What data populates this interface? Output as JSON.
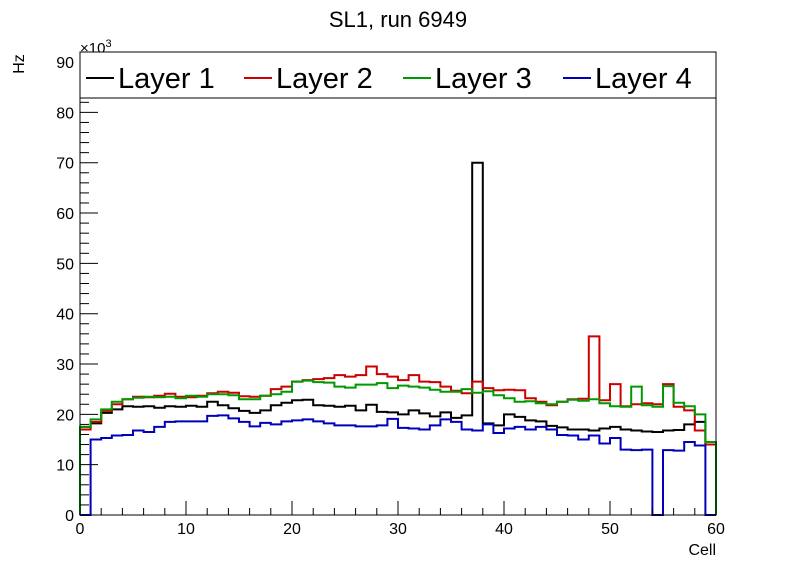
{
  "chart_data": {
    "type": "histogram-step",
    "title": "SL1, run 6949",
    "xlabel": "Cell",
    "ylabel": "Hz",
    "y_exponent_label": "×10",
    "y_exponent_power": "3",
    "xlim": [
      0,
      60
    ],
    "ylim": [
      0,
      92
    ],
    "x_ticks": [
      0,
      10,
      20,
      30,
      40,
      50,
      60
    ],
    "y_ticks": [
      0,
      10,
      20,
      30,
      40,
      50,
      60,
      70,
      80,
      90
    ],
    "legend_position": "top",
    "series": [
      {
        "name": "Layer 1",
        "color": "#000000",
        "values": [
          17.5,
          18.2,
          20.3,
          21.0,
          21.6,
          21.5,
          21.6,
          21.3,
          21.6,
          21.5,
          21.7,
          21.5,
          22.5,
          21.8,
          21.2,
          20.7,
          20.3,
          20.8,
          21.8,
          22.3,
          22.8,
          22.9,
          21.8,
          21.7,
          21.5,
          21.7,
          20.8,
          21.9,
          20.5,
          20.4,
          20.0,
          20.8,
          20.2,
          19.6,
          20.4,
          19.3,
          19.8,
          70.0,
          18.2,
          17.8,
          20.0,
          19.5,
          18.8,
          18.6,
          17.7,
          17.4,
          17.0,
          17.0,
          16.8,
          17.2,
          17.5,
          17.0,
          16.8,
          16.6,
          16.5,
          16.8,
          16.9,
          18.0,
          18.5,
          14.0
        ]
      },
      {
        "name": "Layer 2",
        "color": "#cc0000",
        "values": [
          17.0,
          18.5,
          20.7,
          22.0,
          23.0,
          23.5,
          23.4,
          23.7,
          24.1,
          23.5,
          23.4,
          23.7,
          24.2,
          24.5,
          24.3,
          23.6,
          23.5,
          23.7,
          25.0,
          25.5,
          26.5,
          26.8,
          27.0,
          27.2,
          27.8,
          27.5,
          27.8,
          29.5,
          28.0,
          27.5,
          26.8,
          27.8,
          26.5,
          26.4,
          25.5,
          24.7,
          24.2,
          26.5,
          25.2,
          24.8,
          24.9,
          24.8,
          23.2,
          22.5,
          21.8,
          22.5,
          23.0,
          23.1,
          35.5,
          22.8,
          26.0,
          21.6,
          22.0,
          22.2,
          22.0,
          26.0,
          21.5,
          20.8,
          16.8,
          14.0
        ]
      },
      {
        "name": "Layer 3",
        "color": "#009900",
        "values": [
          17.5,
          19.0,
          21.0,
          22.5,
          23.0,
          23.3,
          23.5,
          23.4,
          23.5,
          23.2,
          23.7,
          23.5,
          24.0,
          24.0,
          23.8,
          23.0,
          23.0,
          23.7,
          24.0,
          24.5,
          26.5,
          26.7,
          26.4,
          26.3,
          25.5,
          25.3,
          25.9,
          25.9,
          26.2,
          25.2,
          25.7,
          25.5,
          25.3,
          24.9,
          24.5,
          24.5,
          25.0,
          24.3,
          24.6,
          23.8,
          23.2,
          22.5,
          22.6,
          22.2,
          22.0,
          22.5,
          22.9,
          22.7,
          23.0,
          22.2,
          21.6,
          21.5,
          25.5,
          21.8,
          21.5,
          25.6,
          22.3,
          21.6,
          20.0,
          14.5
        ]
      },
      {
        "name": "Layer 4",
        "color": "#0000bb",
        "values": [
          0,
          15.0,
          15.3,
          15.8,
          15.9,
          16.8,
          16.5,
          17.5,
          18.5,
          18.6,
          18.6,
          18.6,
          19.7,
          19.8,
          19.2,
          18.5,
          17.6,
          18.3,
          18.0,
          18.6,
          18.8,
          19.0,
          18.6,
          18.2,
          17.8,
          17.8,
          17.6,
          17.6,
          17.8,
          19.1,
          17.3,
          17.2,
          17.0,
          17.8,
          19.0,
          18.5,
          17.0,
          16.8,
          18.0,
          16.3,
          17.2,
          17.5,
          17.0,
          17.5,
          17.0,
          15.9,
          15.8,
          15.0,
          15.8,
          14.2,
          15.3,
          13.0,
          12.9,
          13.0,
          0,
          12.9,
          12.8,
          14.5,
          13.8,
          0
        ]
      }
    ]
  }
}
